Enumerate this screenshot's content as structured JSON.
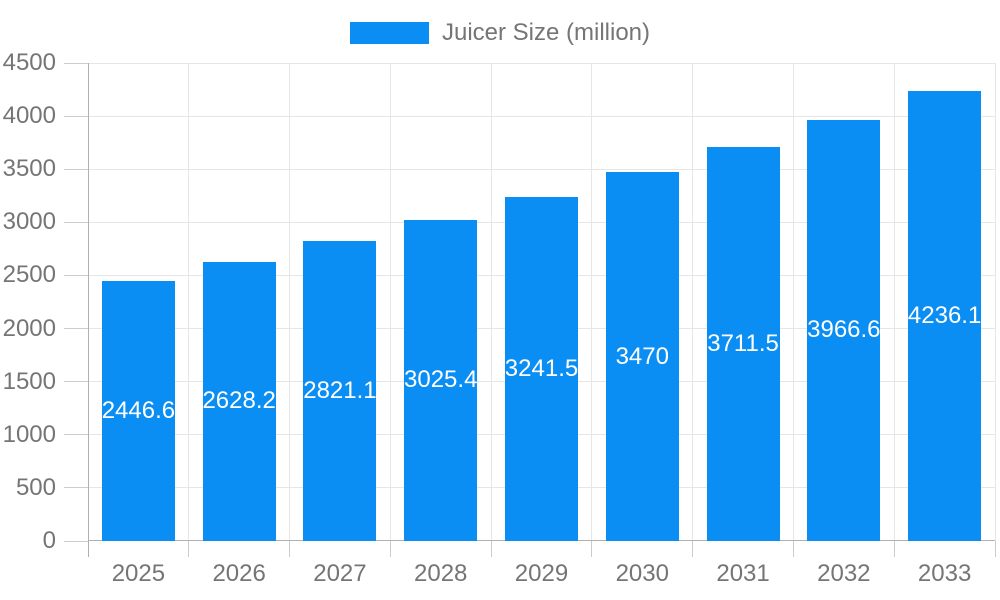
{
  "legend": {
    "label": "Juicer Size (million)"
  },
  "chart_data": {
    "type": "bar",
    "title": "",
    "series_name": "Juicer Size (million)",
    "categories": [
      "2025",
      "2026",
      "2027",
      "2028",
      "2029",
      "2030",
      "2031",
      "2032",
      "2033"
    ],
    "values": [
      2446.6,
      2628.2,
      2821.1,
      3025.4,
      3241.5,
      3470,
      3711.5,
      3966.6,
      4236.1
    ],
    "value_labels": [
      "2446.6",
      "2628.2",
      "2821.1",
      "3025.4",
      "3241.5",
      "3470",
      "3711.5",
      "3966.6",
      "4236.1"
    ],
    "xlabel": "",
    "ylabel": "",
    "ylim": [
      0,
      4500
    ],
    "yticks": [
      0,
      500,
      1000,
      1500,
      2000,
      2500,
      3000,
      3500,
      4000,
      4500
    ],
    "grid": true,
    "legend_position": "top",
    "colors": {
      "bar": "#0a8ef4",
      "bar_label": "#ffffff",
      "axis_text": "#757575",
      "gridline": "#e6e6e6",
      "axis_line": "#b0b0b0",
      "tick": "#cccccc",
      "background": "#ffffff"
    }
  }
}
